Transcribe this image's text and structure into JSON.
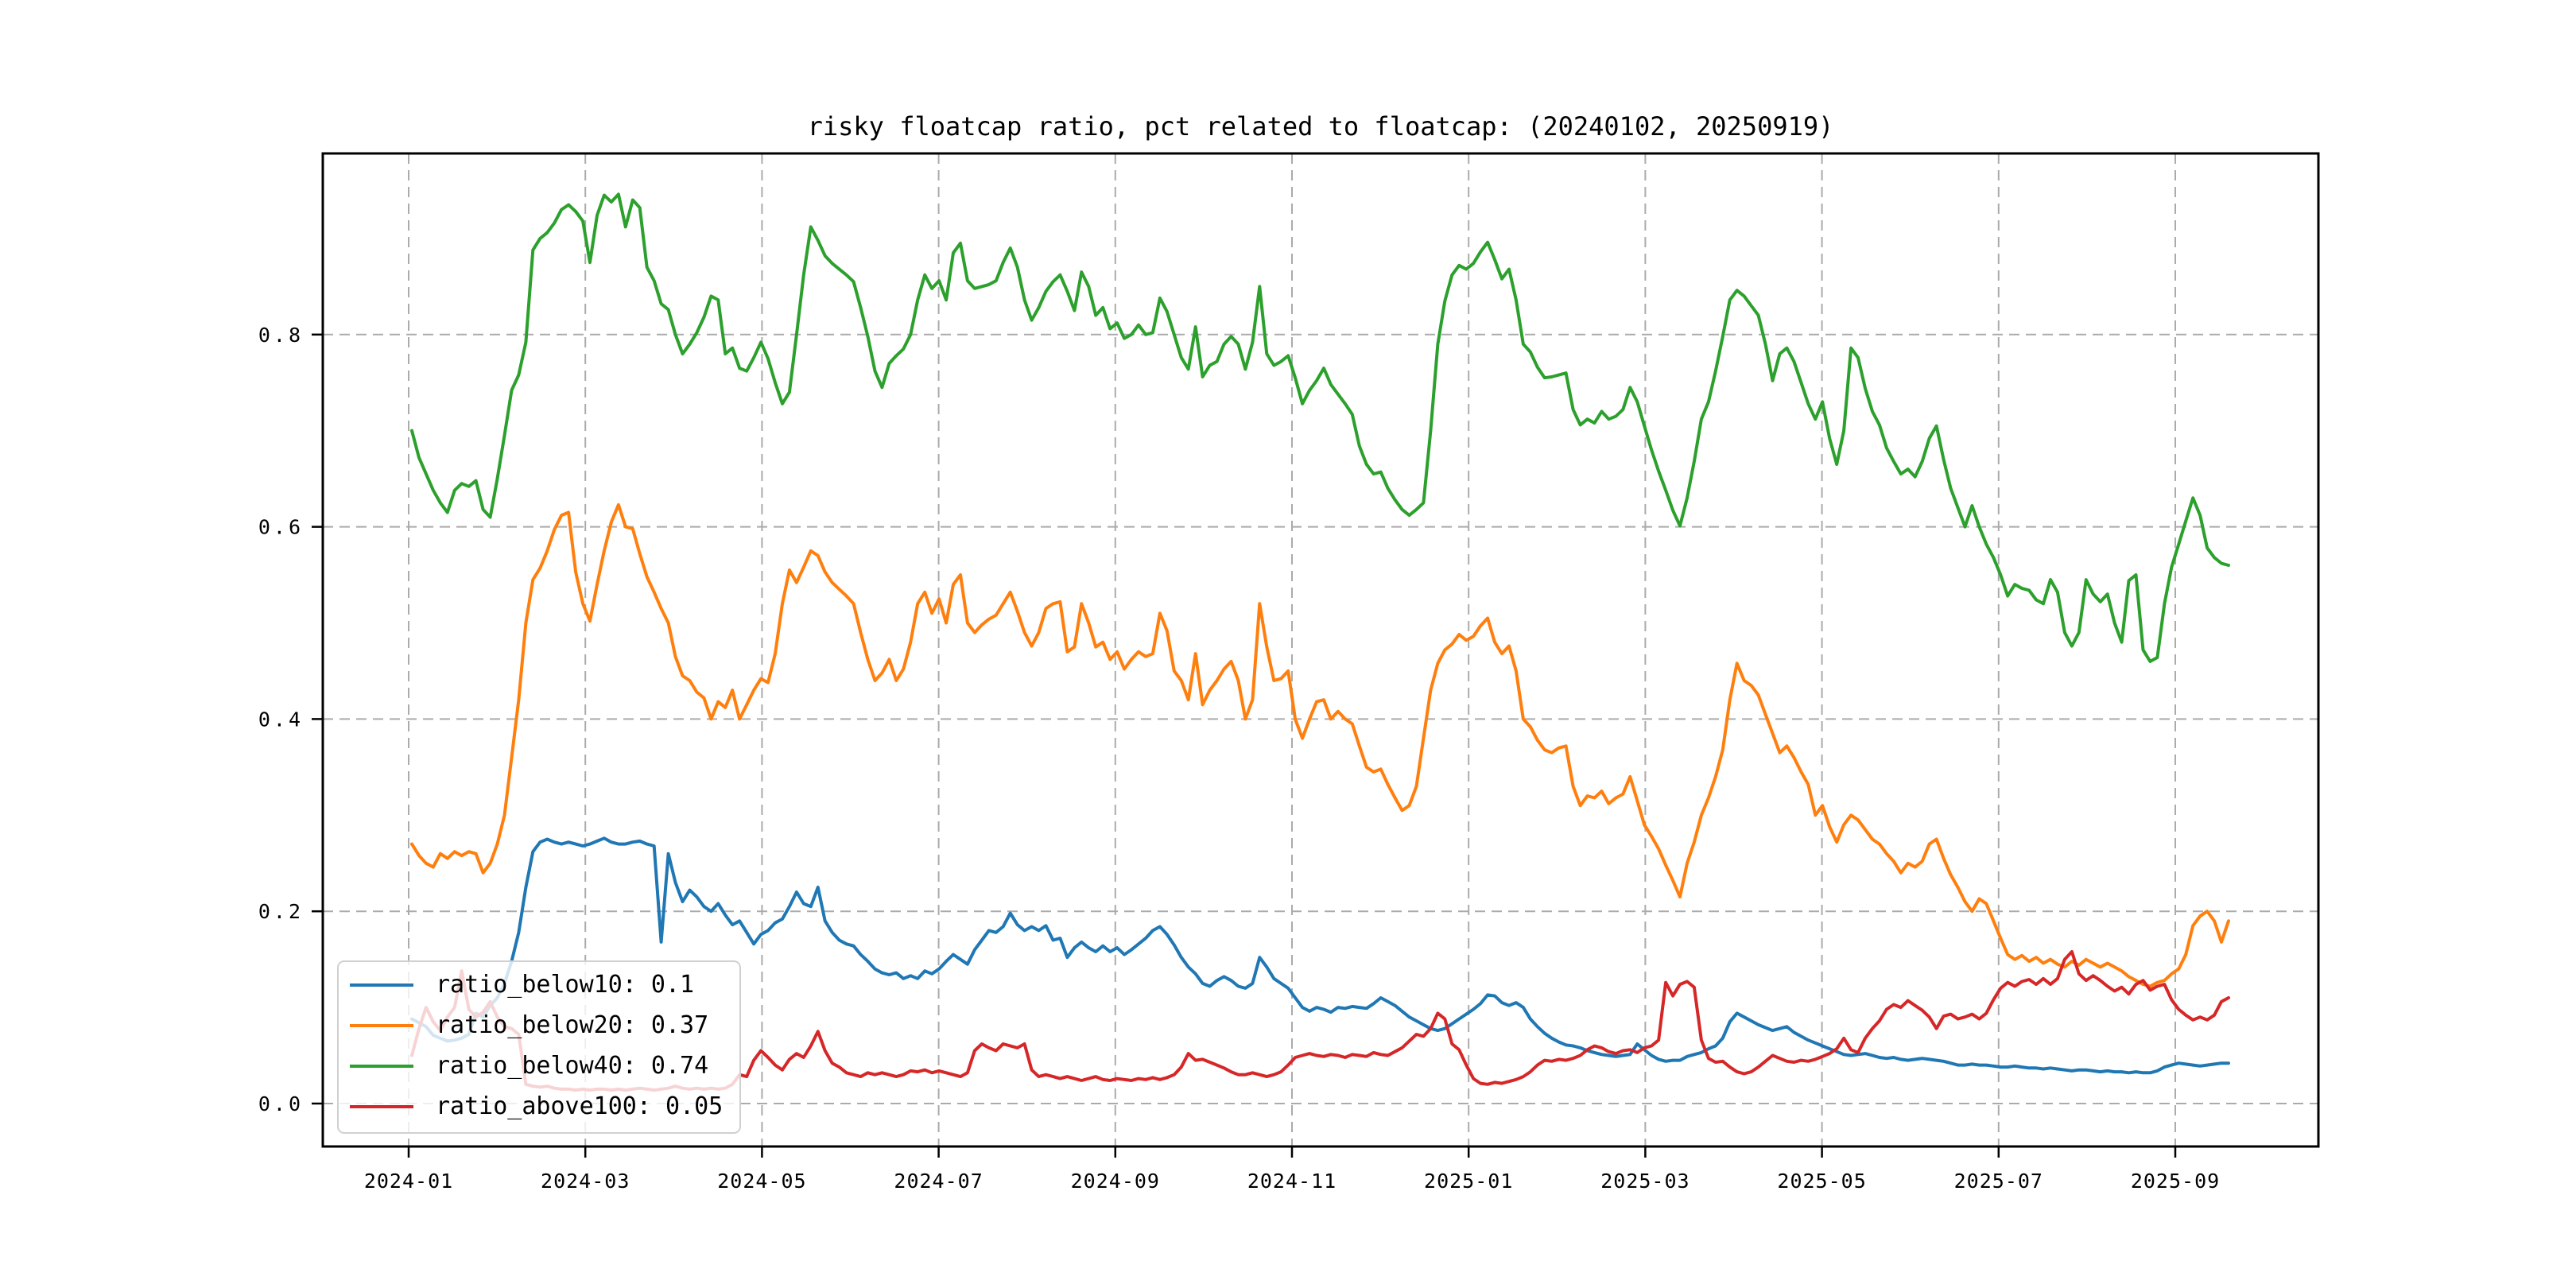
{
  "chart_data": {
    "type": "line",
    "title": "risky floatcap ratio, pct related to floatcap: (20240102, 20250919)",
    "x_start": "20240102",
    "x_end": "20250919",
    "xlabel": "",
    "ylabel": "",
    "ylim": [
      -0.04,
      0.99
    ],
    "grid": true,
    "grid_style": "dashed",
    "legend_position": "lower left",
    "x_tick_labels": [
      "2024-01",
      "2024-03",
      "2024-05",
      "2024-07",
      "2024-09",
      "2024-11",
      "2025-01",
      "2025-03",
      "2025-05",
      "2025-07",
      "2025-09"
    ],
    "y_tick_labels": [
      "0.0",
      "0.2",
      "0.4",
      "0.6",
      "0.8"
    ],
    "series": [
      {
        "name": "ratio_below10",
        "legend_label": "ratio_below10: 0.1",
        "color": "#1f77b4",
        "values": [
          0.088,
          0.084,
          0.08,
          0.071,
          0.068,
          0.065,
          0.066,
          0.068,
          0.072,
          0.094,
          0.09,
          0.102,
          0.11,
          0.125,
          0.148,
          0.178,
          0.225,
          0.262,
          0.272,
          0.275,
          0.272,
          0.27,
          0.272,
          0.27,
          0.268,
          0.27,
          0.273,
          0.276,
          0.272,
          0.27,
          0.27,
          0.272,
          0.273,
          0.27,
          0.268,
          0.168,
          0.26,
          0.23,
          0.21,
          0.222,
          0.215,
          0.205,
          0.2,
          0.208,
          0.196,
          0.186,
          0.19,
          0.178,
          0.166,
          0.176,
          0.18,
          0.188,
          0.192,
          0.205,
          0.22,
          0.208,
          0.205,
          0.225,
          0.19,
          0.178,
          0.17,
          0.166,
          0.164,
          0.155,
          0.148,
          0.14,
          0.136,
          0.134,
          0.136,
          0.13,
          0.133,
          0.13,
          0.138,
          0.135,
          0.14,
          0.148,
          0.155,
          0.15,
          0.145,
          0.16,
          0.17,
          0.18,
          0.178,
          0.184,
          0.198,
          0.186,
          0.18,
          0.184,
          0.18,
          0.185,
          0.17,
          0.172,
          0.152,
          0.162,
          0.168,
          0.162,
          0.158,
          0.164,
          0.158,
          0.162,
          0.155,
          0.16,
          0.166,
          0.172,
          0.18,
          0.184,
          0.176,
          0.165,
          0.152,
          0.142,
          0.135,
          0.125,
          0.122,
          0.128,
          0.132,
          0.128,
          0.122,
          0.12,
          0.125,
          0.152,
          0.142,
          0.13,
          0.125,
          0.12,
          0.11,
          0.1,
          0.096,
          0.1,
          0.098,
          0.095,
          0.1,
          0.099,
          0.101,
          0.1,
          0.099,
          0.104,
          0.11,
          0.106,
          0.102,
          0.096,
          0.09,
          0.086,
          0.082,
          0.078,
          0.076,
          0.078,
          0.083,
          0.088,
          0.093,
          0.098,
          0.104,
          0.113,
          0.112,
          0.105,
          0.102,
          0.105,
          0.1,
          0.088,
          0.08,
          0.073,
          0.068,
          0.064,
          0.061,
          0.06,
          0.058,
          0.055,
          0.053,
          0.051,
          0.05,
          0.049,
          0.05,
          0.051,
          0.062,
          0.056,
          0.05,
          0.046,
          0.044,
          0.045,
          0.045,
          0.049,
          0.051,
          0.053,
          0.057,
          0.06,
          0.068,
          0.085,
          0.094,
          0.09,
          0.086,
          0.082,
          0.079,
          0.076,
          0.078,
          0.08,
          0.074,
          0.07,
          0.066,
          0.063,
          0.06,
          0.057,
          0.054,
          0.051,
          0.05,
          0.051,
          0.052,
          0.05,
          0.048,
          0.047,
          0.048,
          0.046,
          0.045,
          0.046,
          0.047,
          0.046,
          0.045,
          0.044,
          0.042,
          0.04,
          0.04,
          0.041,
          0.04,
          0.04,
          0.039,
          0.038,
          0.038,
          0.039,
          0.038,
          0.037,
          0.037,
          0.036,
          0.037,
          0.036,
          0.035,
          0.034,
          0.035,
          0.035,
          0.034,
          0.033,
          0.034,
          0.033,
          0.033,
          0.032,
          0.033,
          0.032,
          0.032,
          0.034,
          0.038,
          0.04,
          0.042,
          0.041,
          0.04,
          0.039,
          0.04,
          0.041,
          0.042,
          0.042
        ]
      },
      {
        "name": "ratio_below20",
        "legend_label": "ratio_below20: 0.37",
        "color": "#ff7f0e",
        "values": [
          0.27,
          0.258,
          0.25,
          0.246,
          0.26,
          0.255,
          0.262,
          0.258,
          0.262,
          0.26,
          0.24,
          0.25,
          0.27,
          0.3,
          0.36,
          0.42,
          0.5,
          0.545,
          0.557,
          0.575,
          0.597,
          0.612,
          0.615,
          0.553,
          0.52,
          0.502,
          0.54,
          0.575,
          0.605,
          0.623,
          0.6,
          0.598,
          0.572,
          0.548,
          0.532,
          0.515,
          0.5,
          0.465,
          0.445,
          0.44,
          0.428,
          0.422,
          0.4,
          0.418,
          0.412,
          0.43,
          0.4,
          0.415,
          0.43,
          0.442,
          0.438,
          0.468,
          0.52,
          0.555,
          0.542,
          0.558,
          0.575,
          0.57,
          0.553,
          0.542,
          0.535,
          0.528,
          0.52,
          0.49,
          0.462,
          0.44,
          0.448,
          0.462,
          0.44,
          0.452,
          0.48,
          0.52,
          0.532,
          0.51,
          0.525,
          0.5,
          0.54,
          0.55,
          0.5,
          0.49,
          0.498,
          0.504,
          0.508,
          0.52,
          0.532,
          0.512,
          0.49,
          0.476,
          0.49,
          0.515,
          0.52,
          0.522,
          0.47,
          0.475,
          0.52,
          0.5,
          0.475,
          0.48,
          0.462,
          0.47,
          0.452,
          0.462,
          0.47,
          0.465,
          0.468,
          0.51,
          0.492,
          0.45,
          0.44,
          0.42,
          0.468,
          0.415,
          0.43,
          0.44,
          0.452,
          0.46,
          0.44,
          0.4,
          0.42,
          0.52,
          0.475,
          0.44,
          0.442,
          0.45,
          0.4,
          0.38,
          0.4,
          0.418,
          0.42,
          0.4,
          0.408,
          0.4,
          0.395,
          0.372,
          0.35,
          0.345,
          0.348,
          0.332,
          0.318,
          0.305,
          0.31,
          0.33,
          0.38,
          0.43,
          0.458,
          0.472,
          0.478,
          0.488,
          0.482,
          0.486,
          0.497,
          0.505,
          0.48,
          0.468,
          0.476,
          0.45,
          0.4,
          0.392,
          0.378,
          0.368,
          0.365,
          0.37,
          0.372,
          0.33,
          0.31,
          0.32,
          0.318,
          0.325,
          0.312,
          0.318,
          0.322,
          0.34,
          0.315,
          0.29,
          0.278,
          0.265,
          0.248,
          0.232,
          0.215,
          0.25,
          0.272,
          0.3,
          0.318,
          0.34,
          0.368,
          0.42,
          0.458,
          0.44,
          0.435,
          0.425,
          0.405,
          0.385,
          0.365,
          0.372,
          0.36,
          0.345,
          0.332,
          0.3,
          0.31,
          0.288,
          0.272,
          0.29,
          0.3,
          0.295,
          0.285,
          0.275,
          0.27,
          0.26,
          0.252,
          0.24,
          0.25,
          0.246,
          0.252,
          0.27,
          0.275,
          0.255,
          0.238,
          0.225,
          0.21,
          0.2,
          0.213,
          0.208,
          0.19,
          0.172,
          0.155,
          0.15,
          0.154,
          0.148,
          0.152,
          0.146,
          0.15,
          0.145,
          0.142,
          0.148,
          0.144,
          0.15,
          0.146,
          0.142,
          0.146,
          0.142,
          0.138,
          0.132,
          0.128,
          0.124,
          0.122,
          0.126,
          0.128,
          0.135,
          0.14,
          0.155,
          0.185,
          0.195,
          0.2,
          0.19,
          0.168,
          0.19
        ]
      },
      {
        "name": "ratio_below40",
        "legend_label": "ratio_below40: 0.74",
        "color": "#2ca02c",
        "values": [
          0.7,
          0.672,
          0.655,
          0.638,
          0.625,
          0.615,
          0.638,
          0.645,
          0.642,
          0.648,
          0.618,
          0.61,
          0.65,
          0.695,
          0.742,
          0.758,
          0.792,
          0.888,
          0.9,
          0.906,
          0.916,
          0.93,
          0.935,
          0.928,
          0.918,
          0.875,
          0.924,
          0.945,
          0.938,
          0.946,
          0.912,
          0.94,
          0.932,
          0.87,
          0.856,
          0.832,
          0.826,
          0.8,
          0.78,
          0.79,
          0.802,
          0.818,
          0.84,
          0.836,
          0.78,
          0.786,
          0.765,
          0.762,
          0.776,
          0.792,
          0.775,
          0.75,
          0.728,
          0.74,
          0.8,
          0.862,
          0.912,
          0.898,
          0.882,
          0.874,
          0.868,
          0.862,
          0.855,
          0.828,
          0.798,
          0.762,
          0.745,
          0.77,
          0.778,
          0.785,
          0.8,
          0.836,
          0.862,
          0.848,
          0.856,
          0.836,
          0.885,
          0.895,
          0.856,
          0.848,
          0.85,
          0.852,
          0.856,
          0.875,
          0.89,
          0.87,
          0.836,
          0.815,
          0.828,
          0.845,
          0.855,
          0.862,
          0.845,
          0.825,
          0.865,
          0.85,
          0.82,
          0.828,
          0.806,
          0.812,
          0.796,
          0.8,
          0.81,
          0.8,
          0.802,
          0.838,
          0.824,
          0.8,
          0.776,
          0.764,
          0.808,
          0.756,
          0.768,
          0.772,
          0.79,
          0.798,
          0.79,
          0.764,
          0.792,
          0.85,
          0.78,
          0.768,
          0.772,
          0.778,
          0.755,
          0.728,
          0.742,
          0.752,
          0.765,
          0.748,
          0.738,
          0.728,
          0.717,
          0.684,
          0.665,
          0.655,
          0.657,
          0.64,
          0.628,
          0.618,
          0.612,
          0.618,
          0.625,
          0.7,
          0.79,
          0.835,
          0.862,
          0.872,
          0.868,
          0.874,
          0.886,
          0.896,
          0.878,
          0.858,
          0.868,
          0.836,
          0.79,
          0.782,
          0.766,
          0.755,
          0.756,
          0.758,
          0.76,
          0.722,
          0.706,
          0.712,
          0.708,
          0.72,
          0.712,
          0.715,
          0.722,
          0.745,
          0.73,
          0.705,
          0.68,
          0.658,
          0.638,
          0.617,
          0.601,
          0.63,
          0.668,
          0.712,
          0.73,
          0.762,
          0.798,
          0.836,
          0.846,
          0.84,
          0.83,
          0.82,
          0.79,
          0.752,
          0.78,
          0.786,
          0.772,
          0.75,
          0.728,
          0.712,
          0.73,
          0.692,
          0.665,
          0.7,
          0.786,
          0.776,
          0.744,
          0.72,
          0.706,
          0.682,
          0.668,
          0.655,
          0.66,
          0.652,
          0.668,
          0.692,
          0.705,
          0.67,
          0.64,
          0.62,
          0.6,
          0.622,
          0.6,
          0.582,
          0.568,
          0.55,
          0.528,
          0.54,
          0.536,
          0.534,
          0.524,
          0.52,
          0.545,
          0.532,
          0.49,
          0.476,
          0.49,
          0.545,
          0.53,
          0.522,
          0.53,
          0.5,
          0.48,
          0.544,
          0.55,
          0.472,
          0.46,
          0.464,
          0.52,
          0.558,
          0.582,
          0.606,
          0.63,
          0.612,
          0.578,
          0.568,
          0.562,
          0.56
        ]
      },
      {
        "name": "ratio_above100",
        "legend_label": "ratio_above100: 0.05",
        "color": "#d62728",
        "values": [
          0.05,
          0.078,
          0.1,
          0.085,
          0.076,
          0.09,
          0.1,
          0.138,
          0.098,
          0.09,
          0.095,
          0.106,
          0.09,
          0.08,
          0.078,
          0.072,
          0.02,
          0.018,
          0.017,
          0.018,
          0.016,
          0.015,
          0.015,
          0.014,
          0.015,
          0.014,
          0.015,
          0.015,
          0.014,
          0.015,
          0.014,
          0.015,
          0.016,
          0.015,
          0.014,
          0.015,
          0.016,
          0.018,
          0.016,
          0.015,
          0.016,
          0.015,
          0.016,
          0.015,
          0.016,
          0.02,
          0.03,
          0.028,
          0.045,
          0.055,
          0.048,
          0.04,
          0.035,
          0.046,
          0.052,
          0.048,
          0.06,
          0.075,
          0.055,
          0.042,
          0.038,
          0.032,
          0.03,
          0.028,
          0.032,
          0.03,
          0.032,
          0.03,
          0.028,
          0.03,
          0.034,
          0.033,
          0.035,
          0.032,
          0.034,
          0.032,
          0.03,
          0.028,
          0.032,
          0.055,
          0.062,
          0.058,
          0.055,
          0.062,
          0.06,
          0.058,
          0.062,
          0.035,
          0.028,
          0.03,
          0.028,
          0.026,
          0.028,
          0.026,
          0.024,
          0.026,
          0.028,
          0.025,
          0.024,
          0.026,
          0.025,
          0.024,
          0.026,
          0.025,
          0.027,
          0.025,
          0.027,
          0.03,
          0.038,
          0.052,
          0.045,
          0.046,
          0.043,
          0.04,
          0.037,
          0.033,
          0.03,
          0.03,
          0.032,
          0.03,
          0.028,
          0.03,
          0.033,
          0.04,
          0.048,
          0.05,
          0.052,
          0.05,
          0.049,
          0.051,
          0.05,
          0.048,
          0.051,
          0.05,
          0.049,
          0.053,
          0.051,
          0.05,
          0.054,
          0.058,
          0.065,
          0.072,
          0.07,
          0.078,
          0.094,
          0.088,
          0.062,
          0.056,
          0.04,
          0.026,
          0.021,
          0.02,
          0.022,
          0.021,
          0.023,
          0.025,
          0.028,
          0.033,
          0.04,
          0.045,
          0.044,
          0.046,
          0.045,
          0.047,
          0.05,
          0.056,
          0.06,
          0.058,
          0.054,
          0.052,
          0.055,
          0.056,
          0.053,
          0.058,
          0.06,
          0.066,
          0.126,
          0.112,
          0.124,
          0.127,
          0.121,
          0.066,
          0.047,
          0.043,
          0.044,
          0.038,
          0.033,
          0.031,
          0.033,
          0.038,
          0.044,
          0.05,
          0.047,
          0.044,
          0.043,
          0.045,
          0.044,
          0.046,
          0.049,
          0.052,
          0.057,
          0.068,
          0.056,
          0.053,
          0.068,
          0.078,
          0.086,
          0.098,
          0.103,
          0.1,
          0.107,
          0.102,
          0.097,
          0.09,
          0.078,
          0.091,
          0.093,
          0.088,
          0.09,
          0.093,
          0.088,
          0.094,
          0.108,
          0.12,
          0.126,
          0.122,
          0.127,
          0.129,
          0.124,
          0.13,
          0.124,
          0.13,
          0.15,
          0.158,
          0.135,
          0.128,
          0.133,
          0.128,
          0.122,
          0.117,
          0.121,
          0.114,
          0.124,
          0.128,
          0.118,
          0.122,
          0.124,
          0.108,
          0.098,
          0.092,
          0.087,
          0.09,
          0.087,
          0.092,
          0.106,
          0.11
        ]
      }
    ]
  }
}
